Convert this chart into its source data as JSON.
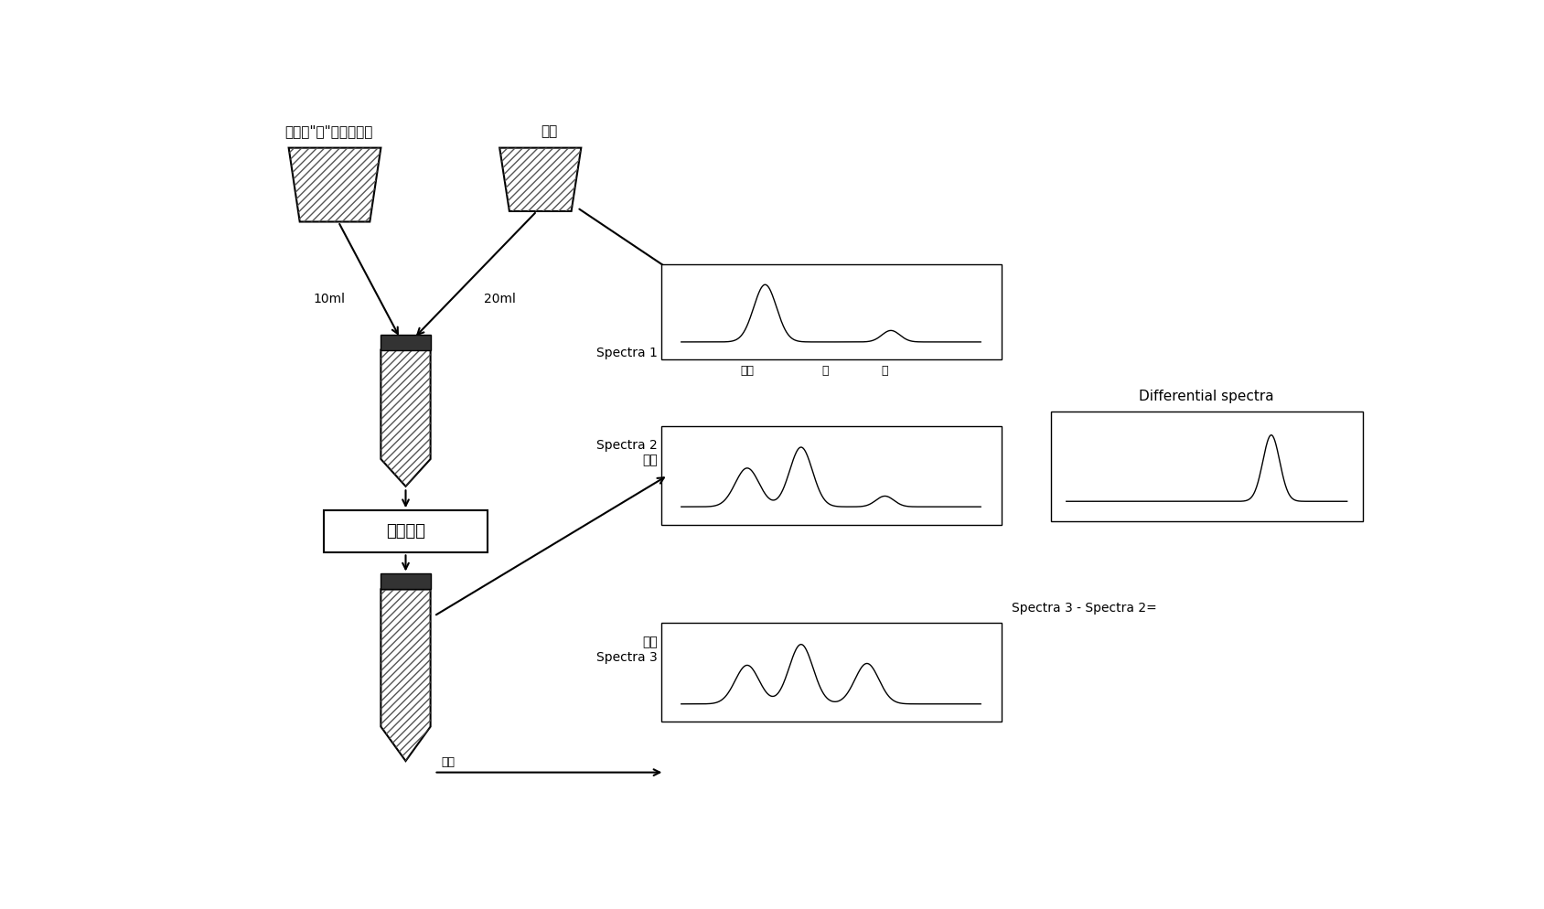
{
  "title_label": "样品或\"干\"油（参比）",
  "solvent_label": "溶剂",
  "vol1_label": "10ml",
  "vol2_label": "20ml",
  "mix_label": "混合离心",
  "spectra1_label": "Spectra 1",
  "spectra2_label_top": "Spectra 2",
  "spectra2_label_bot": "参比",
  "spectra3_label_top": "样品",
  "spectra3_label_bot": "Spectra 3",
  "diff_eq_label": "Spectra 3 - Spectra 2=",
  "diff_title": "Differential spectra",
  "solvent_peak_label": "溶剂",
  "oil_peak_label": "油",
  "water_peak_label": "水",
  "bg_color": "#ffffff"
}
